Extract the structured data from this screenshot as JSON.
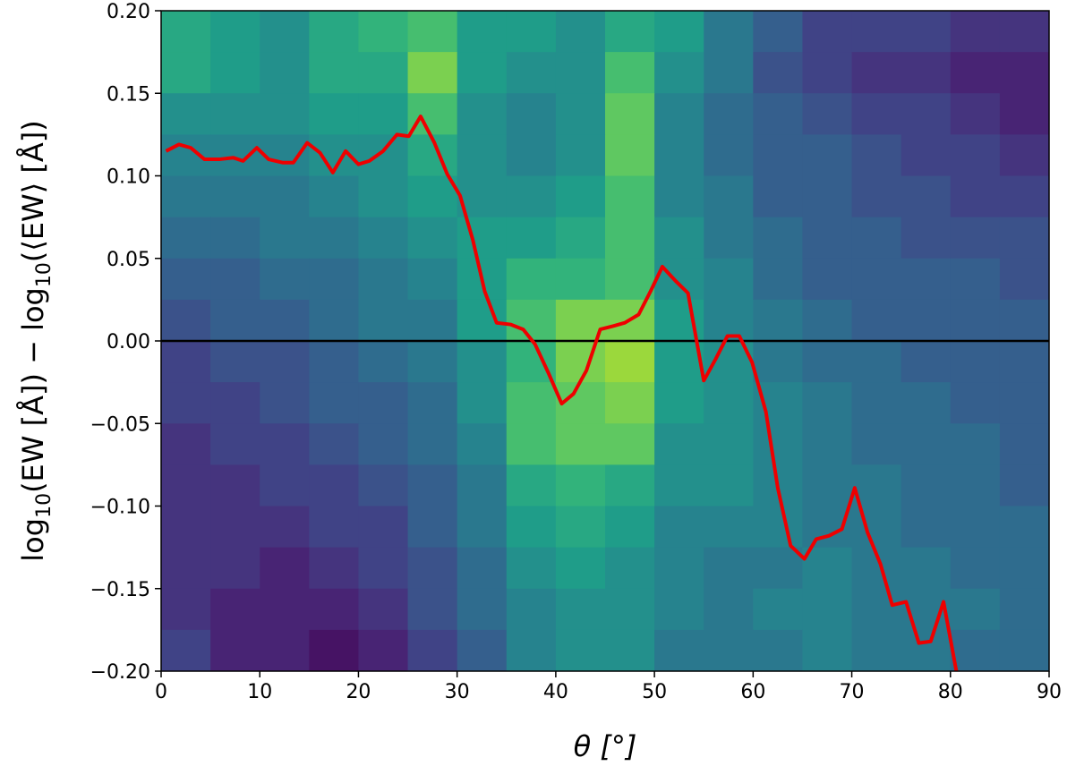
{
  "chart_data": {
    "type": "heatmap-line",
    "xlabel": "θ [°]",
    "ylabel_parts": [
      "log",
      "10",
      "(EW [Å]) − log",
      "10",
      "(⟨EW⟩ [Å])"
    ],
    "xlim": [
      0,
      90
    ],
    "ylim": [
      -0.2,
      0.2
    ],
    "xticks": [
      0,
      10,
      20,
      30,
      40,
      50,
      60,
      70,
      80,
      90
    ],
    "yticks": [
      {
        "value": -0.2,
        "label": "−0.20"
      },
      {
        "value": -0.15,
        "label": "−0.15"
      },
      {
        "value": -0.1,
        "label": "−0.10"
      },
      {
        "value": -0.05,
        "label": "−0.05"
      },
      {
        "value": 0,
        "label": "0.00"
      },
      {
        "value": 0.05,
        "label": "0.05"
      },
      {
        "value": 0.1,
        "label": "0.10"
      },
      {
        "value": 0.15,
        "label": "0.15"
      },
      {
        "value": 0.2,
        "label": "0.20"
      }
    ],
    "colormap": "viridis",
    "heatmap": {
      "xbins": [
        0,
        5,
        10,
        15,
        20,
        25,
        30,
        35,
        40,
        45,
        50,
        55,
        60,
        65,
        70,
        75,
        80,
        85,
        90
      ],
      "ybins": [
        0.2,
        0.175,
        0.15,
        0.125,
        0.1,
        0.075,
        0.05,
        0.025,
        0,
        -0.025,
        -0.05,
        -0.075,
        -0.1,
        -0.125,
        -0.15,
        -0.175,
        -0.2
      ],
      "intensity": [
        [
          0.6,
          0.55,
          0.5,
          0.6,
          0.65,
          0.7,
          0.55,
          0.55,
          0.5,
          0.6,
          0.55,
          0.4,
          0.3,
          0.2,
          0.2,
          0.2,
          0.15,
          0.15
        ],
        [
          0.6,
          0.55,
          0.5,
          0.6,
          0.6,
          0.8,
          0.55,
          0.5,
          0.5,
          0.7,
          0.5,
          0.4,
          0.25,
          0.2,
          0.15,
          0.15,
          0.1,
          0.1
        ],
        [
          0.5,
          0.5,
          0.5,
          0.55,
          0.55,
          0.7,
          0.5,
          0.45,
          0.5,
          0.75,
          0.45,
          0.35,
          0.3,
          0.25,
          0.2,
          0.2,
          0.15,
          0.1
        ],
        [
          0.45,
          0.45,
          0.45,
          0.5,
          0.5,
          0.6,
          0.5,
          0.45,
          0.5,
          0.75,
          0.45,
          0.35,
          0.3,
          0.3,
          0.25,
          0.2,
          0.2,
          0.15
        ],
        [
          0.4,
          0.4,
          0.4,
          0.45,
          0.5,
          0.55,
          0.5,
          0.5,
          0.55,
          0.7,
          0.45,
          0.4,
          0.3,
          0.3,
          0.25,
          0.25,
          0.2,
          0.2
        ],
        [
          0.35,
          0.35,
          0.4,
          0.4,
          0.45,
          0.5,
          0.55,
          0.55,
          0.6,
          0.7,
          0.5,
          0.4,
          0.35,
          0.3,
          0.3,
          0.25,
          0.25,
          0.25
        ],
        [
          0.3,
          0.3,
          0.35,
          0.35,
          0.4,
          0.45,
          0.55,
          0.65,
          0.65,
          0.7,
          0.5,
          0.45,
          0.35,
          0.3,
          0.3,
          0.3,
          0.3,
          0.25
        ],
        [
          0.25,
          0.3,
          0.3,
          0.35,
          0.4,
          0.4,
          0.55,
          0.7,
          0.8,
          0.8,
          0.55,
          0.45,
          0.4,
          0.35,
          0.3,
          0.3,
          0.3,
          0.3
        ],
        [
          0.2,
          0.25,
          0.25,
          0.3,
          0.35,
          0.4,
          0.5,
          0.65,
          0.8,
          0.85,
          0.55,
          0.5,
          0.4,
          0.35,
          0.35,
          0.3,
          0.3,
          0.3
        ],
        [
          0.2,
          0.2,
          0.25,
          0.3,
          0.3,
          0.35,
          0.5,
          0.7,
          0.75,
          0.8,
          0.55,
          0.5,
          0.45,
          0.4,
          0.35,
          0.35,
          0.3,
          0.3
        ],
        [
          0.15,
          0.2,
          0.2,
          0.25,
          0.3,
          0.35,
          0.45,
          0.7,
          0.75,
          0.75,
          0.5,
          0.5,
          0.45,
          0.4,
          0.35,
          0.35,
          0.35,
          0.3
        ],
        [
          0.15,
          0.15,
          0.2,
          0.2,
          0.25,
          0.3,
          0.4,
          0.6,
          0.65,
          0.6,
          0.5,
          0.5,
          0.45,
          0.4,
          0.4,
          0.35,
          0.35,
          0.3
        ],
        [
          0.15,
          0.15,
          0.15,
          0.2,
          0.2,
          0.3,
          0.4,
          0.55,
          0.6,
          0.55,
          0.45,
          0.45,
          0.45,
          0.4,
          0.4,
          0.35,
          0.35,
          0.35
        ],
        [
          0.15,
          0.15,
          0.1,
          0.15,
          0.2,
          0.25,
          0.35,
          0.5,
          0.55,
          0.5,
          0.45,
          0.4,
          0.4,
          0.45,
          0.4,
          0.4,
          0.35,
          0.35
        ],
        [
          0.15,
          0.1,
          0.1,
          0.1,
          0.15,
          0.25,
          0.35,
          0.45,
          0.5,
          0.5,
          0.45,
          0.4,
          0.45,
          0.45,
          0.4,
          0.4,
          0.4,
          0.35
        ],
        [
          0.2,
          0.1,
          0.1,
          0.05,
          0.1,
          0.2,
          0.3,
          0.45,
          0.5,
          0.5,
          0.4,
          0.4,
          0.4,
          0.45,
          0.4,
          0.4,
          0.35,
          0.35
        ]
      ]
    },
    "hline": {
      "value": 0,
      "color": "#000000"
    },
    "line": {
      "color": "#ee0000",
      "x": [
        0.5,
        1.8,
        3.0,
        4.4,
        5.9,
        7.3,
        8.3,
        9.7,
        10.9,
        12.3,
        13.4,
        14.8,
        16.1,
        17.4,
        18.7,
        20.0,
        21.1,
        22.5,
        23.9,
        25.1,
        26.3,
        27.7,
        29.0,
        30.3,
        31.6,
        32.8,
        34.0,
        35.4,
        36.7,
        37.9,
        39.3,
        40.6,
        41.8,
        43.1,
        44.5,
        45.8,
        47.0,
        48.4,
        49.6,
        50.8,
        52.2,
        53.4,
        55.0,
        56.2,
        57.4,
        58.6,
        59.9,
        61.3,
        62.5,
        63.8,
        65.2,
        66.4,
        67.7,
        69.0,
        70.3,
        71.6,
        72.9,
        74.1,
        75.5,
        76.8,
        78.0,
        79.3,
        80.6
      ],
      "values": [
        0.115,
        0.119,
        0.117,
        0.11,
        0.11,
        0.111,
        0.109,
        0.117,
        0.11,
        0.108,
        0.108,
        0.12,
        0.114,
        0.102,
        0.115,
        0.107,
        0.109,
        0.115,
        0.125,
        0.124,
        0.136,
        0.12,
        0.101,
        0.088,
        0.061,
        0.03,
        0.011,
        0.01,
        0.007,
        -0.002,
        -0.02,
        -0.038,
        -0.032,
        -0.018,
        0.007,
        0.009,
        0.011,
        0.016,
        0.03,
        0.045,
        0.036,
        0.029,
        -0.024,
        -0.011,
        0.003,
        0.003,
        -0.013,
        -0.043,
        -0.089,
        -0.124,
        -0.132,
        -0.12,
        -0.118,
        -0.114,
        -0.089,
        -0.116,
        -0.135,
        -0.16,
        -0.158,
        -0.183,
        -0.182,
        -0.158,
        -0.2
      ]
    }
  }
}
